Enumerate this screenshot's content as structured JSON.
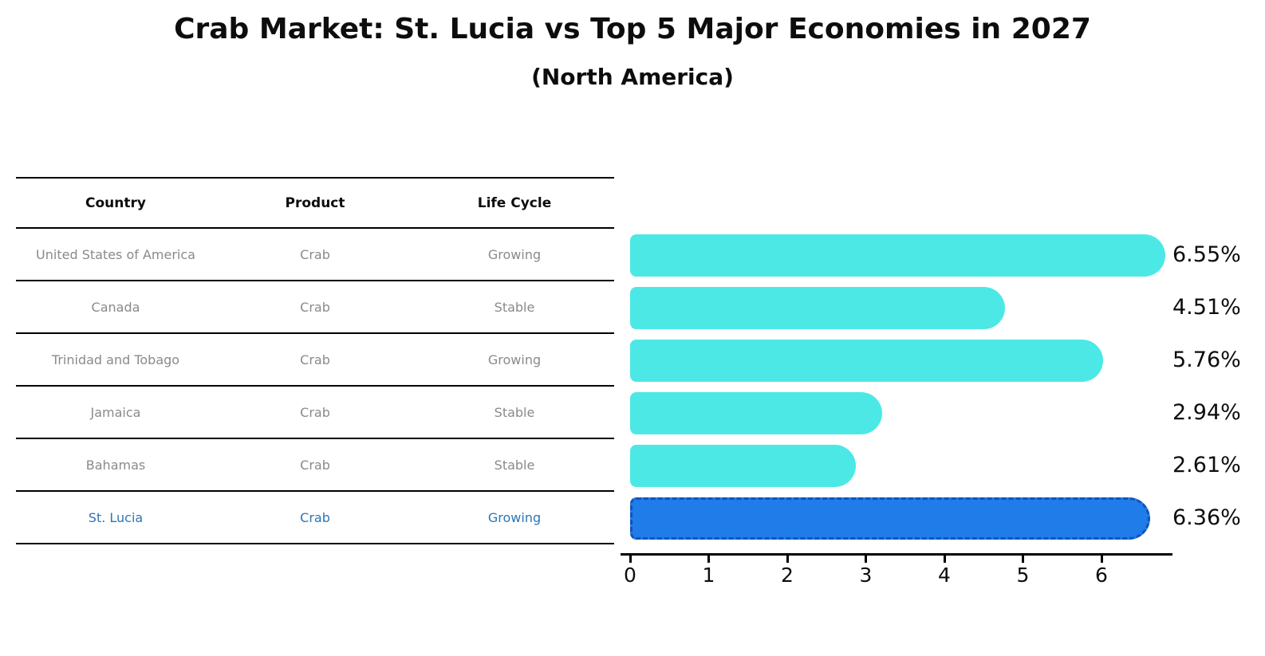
{
  "title": "Crab Market: St. Lucia vs Top 5 Major Economies in 2027",
  "subtitle": "(North America)",
  "table": {
    "headers": [
      "Country",
      "Product",
      "Life Cycle"
    ],
    "rows": [
      {
        "country": "United States of America",
        "product": "Crab",
        "life_cycle": "Growing",
        "highlight": false
      },
      {
        "country": "Canada",
        "product": "Crab",
        "life_cycle": "Stable",
        "highlight": false
      },
      {
        "country": "Trinidad and Tobago",
        "product": "Crab",
        "life_cycle": "Growing",
        "highlight": false
      },
      {
        "country": "Jamaica",
        "product": "Crab",
        "life_cycle": "Stable",
        "highlight": false
      },
      {
        "country": "Bahamas",
        "product": "Crab",
        "life_cycle": "Stable",
        "highlight": false
      },
      {
        "country": "St. Lucia",
        "product": "Crab",
        "life_cycle": "Growing",
        "highlight": true
      }
    ]
  },
  "chart_data": {
    "type": "bar",
    "orientation": "horizontal",
    "title": "Crab Market: St. Lucia vs Top 5 Major Economies in 2027",
    "subtitle": "(North America)",
    "categories": [
      "United States of America",
      "Canada",
      "Trinidad and Tobago",
      "Jamaica",
      "Bahamas",
      "St. Lucia"
    ],
    "values": [
      6.55,
      4.51,
      5.76,
      2.94,
      2.61,
      6.36
    ],
    "value_labels": [
      "6.55%",
      "4.51%",
      "5.76%",
      "2.94%",
      "2.61%",
      "6.36%"
    ],
    "xlabel": "",
    "ylabel": "",
    "xlim": [
      0,
      6.9
    ],
    "xticks": [
      0,
      1,
      2,
      3,
      4,
      5,
      6
    ],
    "grid": false,
    "legend": false,
    "highlight_index": 5,
    "colors": {
      "bar": "#4CE8E6",
      "highlight_fill": "#1F7CE8",
      "highlight_border": "#1353B8",
      "highlight_text": "#2E74B5",
      "row_text": "#8A8A8A",
      "text": "#0D0D0D",
      "axis": "#000000"
    }
  }
}
